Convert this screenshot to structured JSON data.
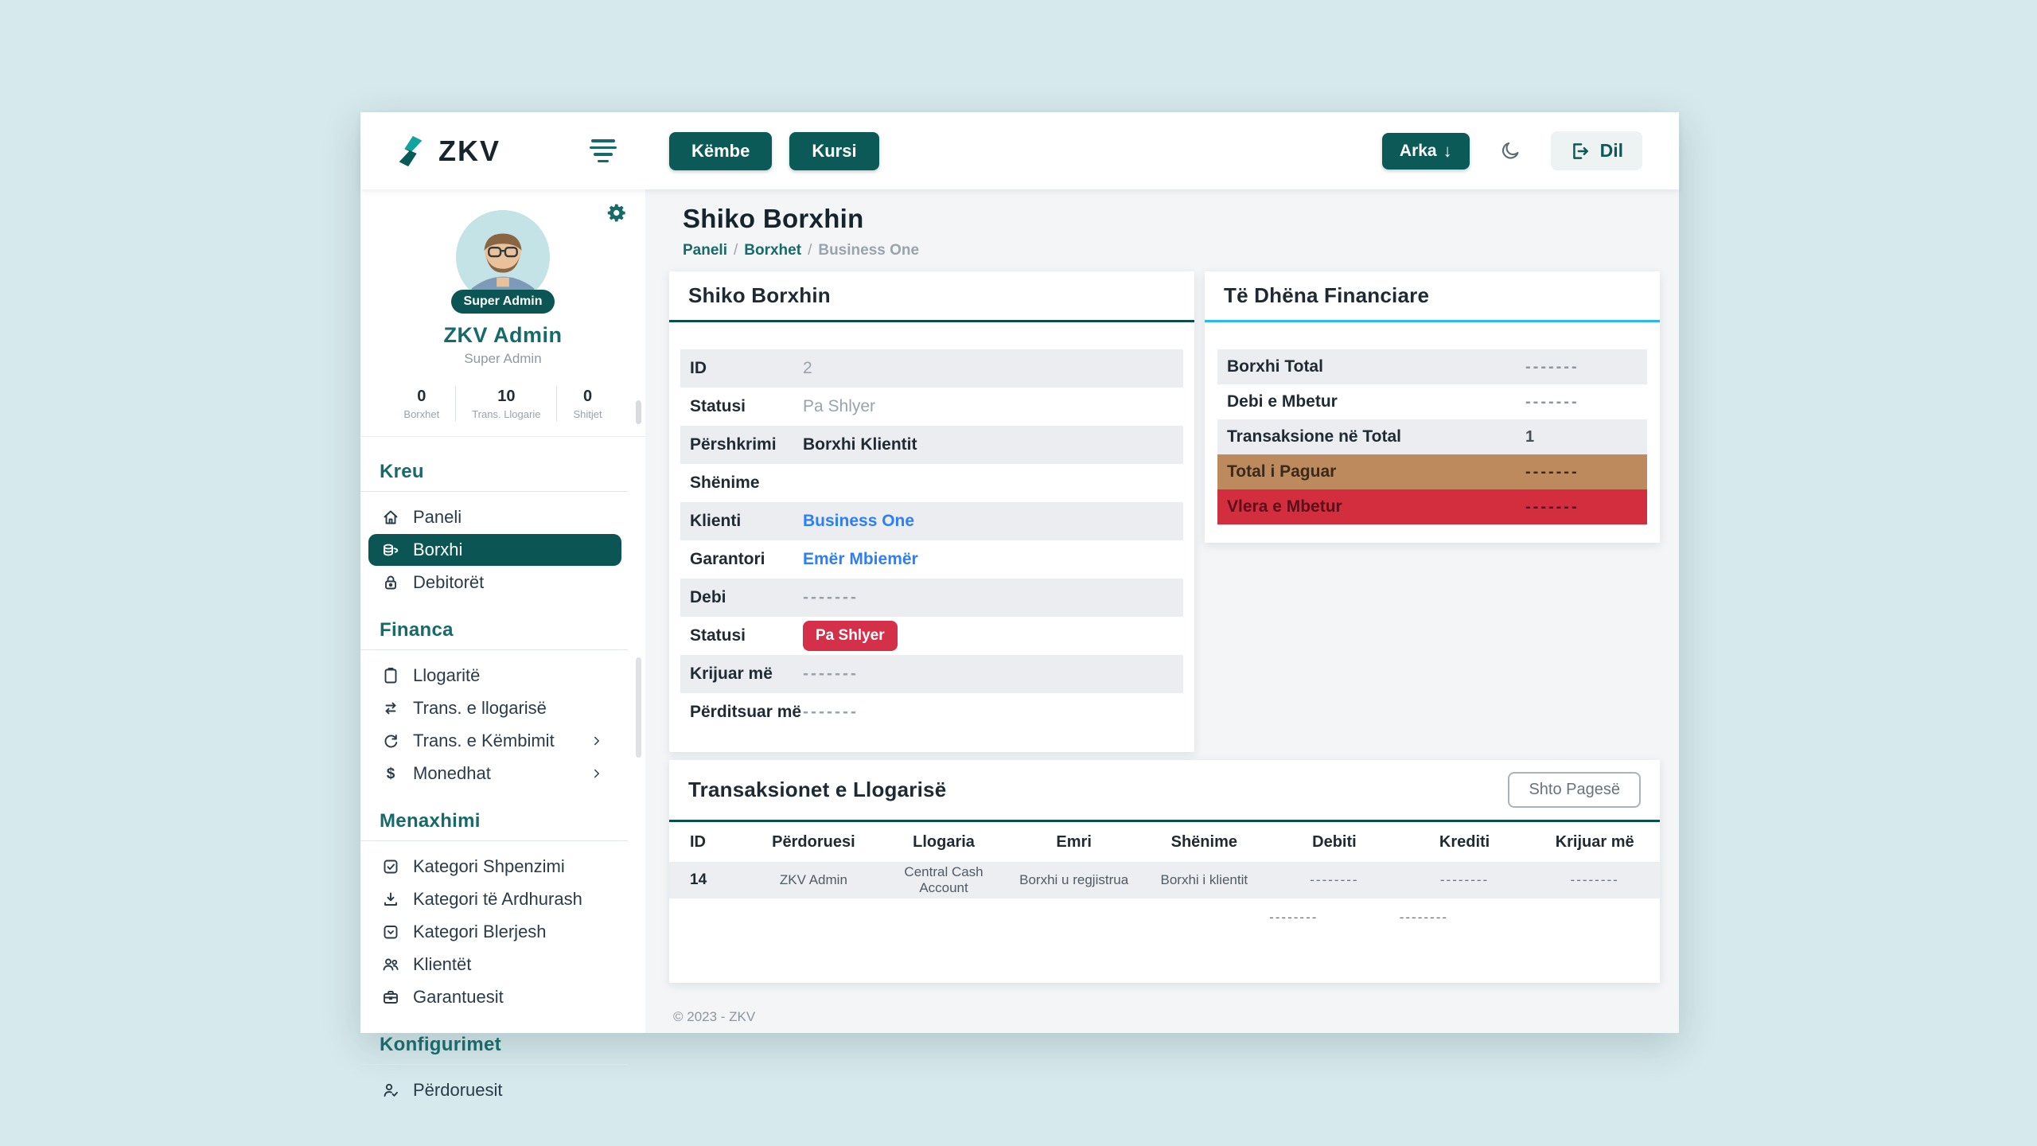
{
  "colors": {
    "accent_teal": "#0b5654",
    "heading_teal": "#17696a",
    "link_blue": "#2d7ef7",
    "badge_red": "#d43049",
    "row_red": "#d22e3e",
    "row_tan": "#bd8a5e",
    "finance_border_cyan": "#29b9ef",
    "page_background": "#d6e9ec"
  },
  "topbar": {
    "brand": "ZKV",
    "menu_buttons": [
      {
        "label": "Këmbe"
      },
      {
        "label": "Kursi"
      }
    ],
    "arka_label": "Arka",
    "arka_arrow": "↓",
    "logout_label": "Dil"
  },
  "sidebar": {
    "profile": {
      "badge": "Super Admin",
      "name": "ZKV Admin",
      "role": "Super Admin",
      "stats": [
        {
          "value": "0",
          "label": "Borxhet"
        },
        {
          "value": "10",
          "label": "Trans. Llogarie"
        },
        {
          "value": "0",
          "label": "Shitjet"
        }
      ]
    },
    "sections": [
      {
        "heading": "Kreu",
        "items": [
          {
            "label": "Paneli",
            "icon": "home-icon"
          },
          {
            "label": "Borxhi",
            "icon": "coins-icon",
            "active": true
          },
          {
            "label": "Debitorët",
            "icon": "lock-icon"
          }
        ]
      },
      {
        "heading": "Financa",
        "items": [
          {
            "label": "Llogaritë",
            "icon": "clipboard-icon"
          },
          {
            "label": "Trans. e llogarisë",
            "icon": "swap-icon"
          },
          {
            "label": "Trans. e Këmbimit",
            "icon": "refresh-icon",
            "chevron": true
          },
          {
            "label": "Monedhat",
            "icon": "dollar-icon",
            "chevron": true
          }
        ]
      },
      {
        "heading": "Menaxhimi",
        "items": [
          {
            "label": "Kategori Shpenzimi",
            "icon": "checkbox-icon"
          },
          {
            "label": "Kategori të Ardhurash",
            "icon": "download-icon"
          },
          {
            "label": "Kategori Blerjesh",
            "icon": "box-icon"
          },
          {
            "label": "Klientët",
            "icon": "people-icon"
          },
          {
            "label": "Garantuesit",
            "icon": "briefcase-icon"
          }
        ]
      },
      {
        "heading": "Konfigurimet",
        "items": [
          {
            "label": "Përdoruesit",
            "icon": "user-check-icon"
          }
        ]
      }
    ]
  },
  "page": {
    "title": "Shiko Borxhin",
    "breadcrumb": [
      {
        "label": "Paneli",
        "type": "link"
      },
      {
        "label": "Borxhet",
        "type": "link"
      },
      {
        "label": "Business One",
        "type": "current"
      }
    ],
    "breadcrumb_separator": "/"
  },
  "debt_card": {
    "title": "Shiko Borxhin",
    "rows": [
      {
        "label": "ID",
        "value": "2",
        "type": "muted"
      },
      {
        "label": "Statusi",
        "value": "Pa Shlyer",
        "type": "muted"
      },
      {
        "label": "Përshkrimi",
        "value": "Borxhi Klientit",
        "type": "strong"
      },
      {
        "label": "Shënime",
        "value": "",
        "type": "empty"
      },
      {
        "label": "Klienti",
        "value": "Business One",
        "type": "link"
      },
      {
        "label": "Garantori",
        "value": "Emër Mbiemër",
        "type": "link"
      },
      {
        "label": "Debi",
        "value": "-------",
        "type": "dashes"
      },
      {
        "label": "Statusi",
        "value": "Pa Shlyer",
        "type": "badge"
      },
      {
        "label": "Krijuar më",
        "value": "-------",
        "type": "dashes"
      },
      {
        "label": "Përditsuar më",
        "value": "-------",
        "type": "dashes"
      }
    ]
  },
  "finance_card": {
    "title": "Të Dhëna Financiare",
    "rows": [
      {
        "label": "Borxhi Total",
        "value": "-------",
        "variant": "shaded",
        "value_style": "dashes"
      },
      {
        "label": "Debi e Mbetur",
        "value": "-------",
        "variant": "plain",
        "value_style": "dashes"
      },
      {
        "label": "Transaksione në Total",
        "value": "1",
        "variant": "shaded",
        "value_style": "number"
      },
      {
        "label": "Total i Paguar",
        "value": "-------",
        "variant": "paid",
        "value_style": "dashes"
      },
      {
        "label": "Vlera e Mbetur",
        "value": "-------",
        "variant": "due",
        "value_style": "dashes"
      }
    ]
  },
  "transactions_card": {
    "title": "Transaksionet e Llogarisë",
    "add_button": "Shto Pagesë",
    "columns": [
      "ID",
      "Përdoruesi",
      "Llogaria",
      "Emri",
      "Shënime",
      "Debiti",
      "Krediti",
      "Krijuar më"
    ],
    "rows": [
      [
        "14",
        "ZKV Admin",
        "Central Cash Account",
        "Borxhi u regjistrua",
        "Borxhi i klientit",
        "--------",
        "--------",
        "--------"
      ]
    ],
    "totals": [
      "",
      "",
      "",
      "",
      "",
      "--------",
      "--------",
      ""
    ]
  },
  "footer": {
    "text": "© 2023 - ZKV"
  }
}
